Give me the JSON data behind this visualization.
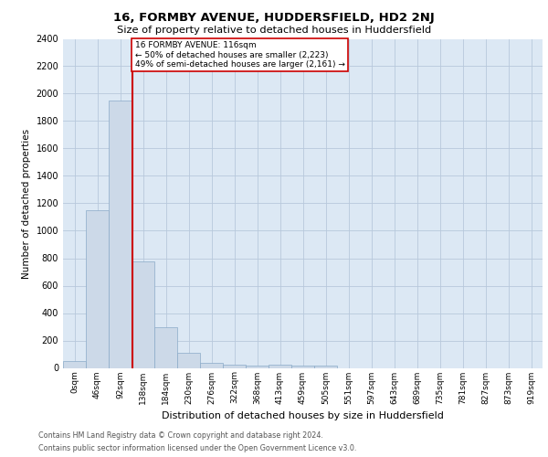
{
  "title1": "16, FORMBY AVENUE, HUDDERSFIELD, HD2 2NJ",
  "title2": "Size of property relative to detached houses in Huddersfield",
  "xlabel": "Distribution of detached houses by size in Huddersfield",
  "ylabel": "Number of detached properties",
  "bin_labels": [
    "0sqm",
    "46sqm",
    "92sqm",
    "138sqm",
    "184sqm",
    "230sqm",
    "276sqm",
    "322sqm",
    "368sqm",
    "413sqm",
    "459sqm",
    "505sqm",
    "551sqm",
    "597sqm",
    "643sqm",
    "689sqm",
    "735sqm",
    "781sqm",
    "827sqm",
    "873sqm",
    "919sqm"
  ],
  "bar_heights": [
    50,
    1150,
    1950,
    775,
    300,
    110,
    40,
    25,
    20,
    25,
    20,
    20,
    0,
    0,
    0,
    0,
    0,
    0,
    0,
    0,
    0
  ],
  "bar_color": "#ccd9e8",
  "bar_edge_color": "#8aaac8",
  "property_label": "16 FORMBY AVENUE: 116sqm",
  "annotation_line1": "← 50% of detached houses are smaller (2,223)",
  "annotation_line2": "49% of semi-detached houses are larger (2,161) →",
  "vline_color": "#cc0000",
  "vline_x": 2.52,
  "ylim": [
    0,
    2400
  ],
  "yticks": [
    0,
    200,
    400,
    600,
    800,
    1000,
    1200,
    1400,
    1600,
    1800,
    2000,
    2200,
    2400
  ],
  "grid_color": "#b8c8dc",
  "bg_color": "#dce8f4",
  "footnote1": "Contains HM Land Registry data © Crown copyright and database right 2024.",
  "footnote2": "Contains public sector information licensed under the Open Government Licence v3.0."
}
